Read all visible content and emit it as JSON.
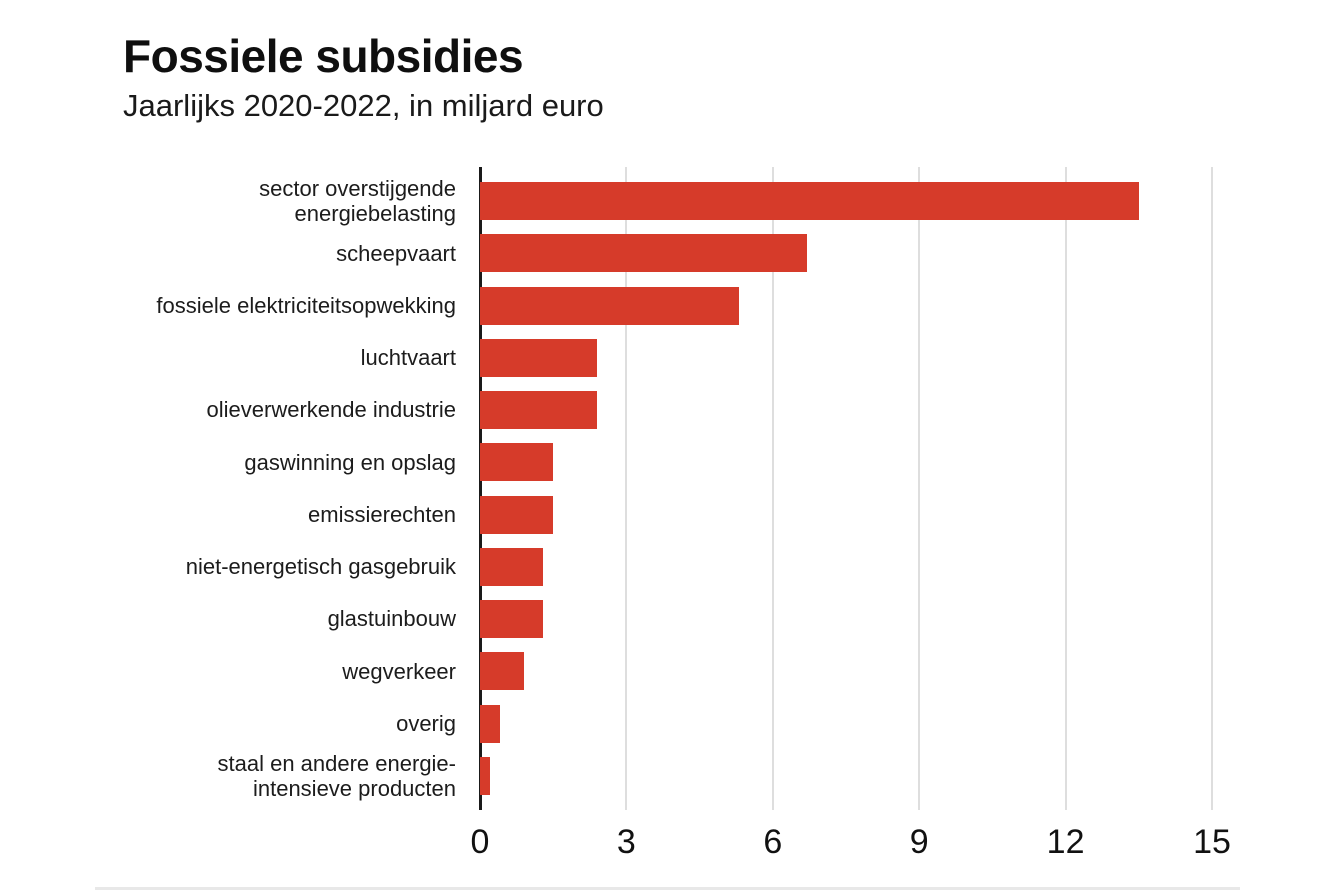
{
  "header": {
    "title": "Fossiele subsidies",
    "subtitle": "Jaarlijks 2020-2022, in miljard euro"
  },
  "chart_data": {
    "type": "bar",
    "orientation": "horizontal",
    "title": "Fossiele subsidies",
    "subtitle": "Jaarlijks 2020-2022, in miljard euro",
    "unit": "miljard euro",
    "categories": [
      "sector overstijgende\nenergiebelasting",
      "scheepvaart",
      "fossiele elektriciteitsopwekking",
      "luchtvaart",
      "olieverwerkende industrie",
      "gaswinning en opslag",
      "emissierechten",
      "niet-energetisch gasgebruik",
      "glastuinbouw",
      "wegverkeer",
      "overig",
      "staal en andere energie-\nintensieve producten"
    ],
    "values": [
      13.5,
      6.7,
      5.3,
      2.4,
      2.4,
      1.5,
      1.5,
      1.3,
      1.3,
      0.9,
      0.4,
      0.2
    ],
    "xlim": [
      0,
      15
    ],
    "x_ticks": [
      0,
      3,
      6,
      9,
      12,
      15
    ],
    "grid": true,
    "legend": false,
    "colors": {
      "bar": "#d63b2a",
      "gridline": "#dedede",
      "axis": "#1a1a1a",
      "text": "#1c1c1c"
    }
  }
}
